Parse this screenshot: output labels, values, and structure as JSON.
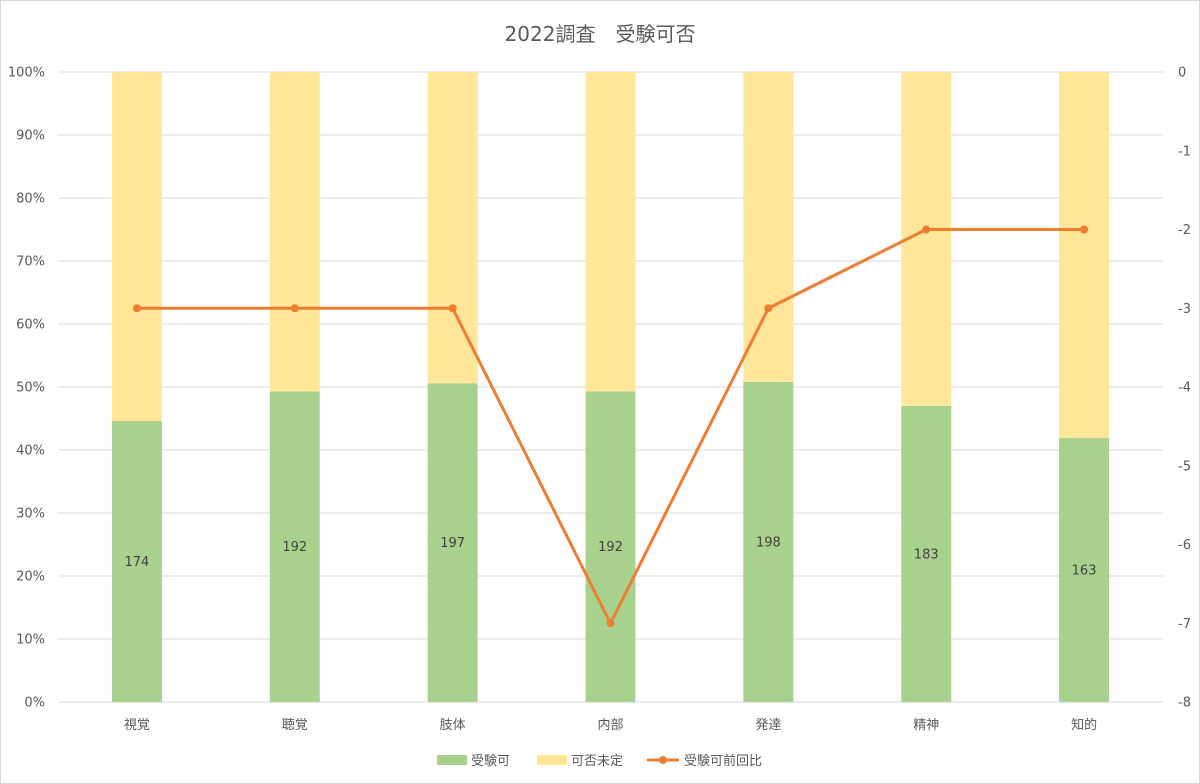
{
  "chart_data": {
    "type": "bar",
    "title": "2022調査　受験可否",
    "categories": [
      "視覚",
      "聴覚",
      "肢体",
      "内部",
      "発達",
      "精神",
      "知的"
    ],
    "series": [
      {
        "name": "受験可",
        "kind": "stacked-bar-percent",
        "axis": "left",
        "percent_values": [
          44.6,
          49.3,
          50.6,
          49.3,
          50.8,
          47.0,
          41.9
        ],
        "data_labels": [
          "174",
          "192",
          "197",
          "192",
          "198",
          "183",
          "163"
        ],
        "color": "#a9d18e"
      },
      {
        "name": "可否未定",
        "kind": "stacked-bar-percent",
        "axis": "left",
        "percent_values": [
          55.4,
          50.7,
          49.4,
          50.7,
          49.2,
          53.0,
          58.1
        ],
        "color": "#ffe699"
      },
      {
        "name": "受験可前回比",
        "kind": "line",
        "axis": "right",
        "values": [
          -3,
          -3,
          -3,
          -7,
          -3,
          -2,
          -2
        ],
        "color": "#ed7d31"
      }
    ],
    "y_left": {
      "ylim": [
        0,
        100
      ],
      "ticks": [
        "0%",
        "10%",
        "20%",
        "30%",
        "40%",
        "50%",
        "60%",
        "70%",
        "80%",
        "90%",
        "100%"
      ]
    },
    "y_right": {
      "ylim": [
        -8,
        0
      ],
      "ticks": [
        "0",
        "-1",
        "-2",
        "-3",
        "-4",
        "-5",
        "-6",
        "-7",
        "-8"
      ]
    },
    "grid": true,
    "legend_position": "bottom"
  }
}
